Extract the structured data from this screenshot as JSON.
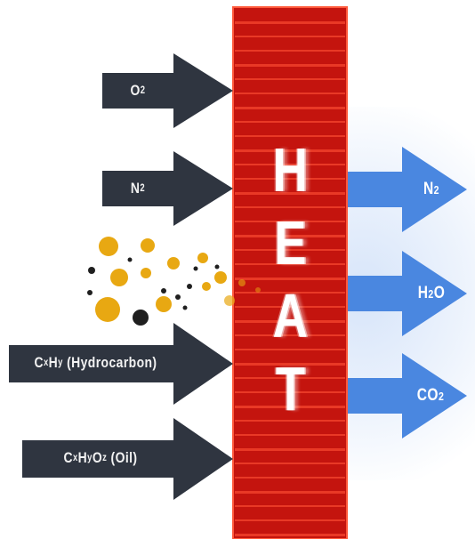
{
  "diagram": {
    "center_word": [
      "H",
      "E",
      "A",
      "T"
    ],
    "inputs": {
      "oxygen": {
        "base": "O",
        "sub": "2"
      },
      "nitrogen": {
        "base": "N",
        "sub": "2"
      },
      "hydrocarbon": {
        "c": "C",
        "c_sub": "x",
        "h": "H",
        "h_sub": "y",
        "desc": "(Hydrocarbon)"
      },
      "oil": {
        "c": "C",
        "c_sub": "x",
        "h": "H",
        "h_sub": "y",
        "o": "O",
        "o_sub": "z",
        "desc": "(Oil)"
      }
    },
    "outputs": {
      "nitrogen": {
        "base": "N",
        "sub": "2"
      },
      "water": {
        "h": "H",
        "h_sub": "2",
        "o": "O"
      },
      "carbon_dioxide": {
        "base": "CO",
        "sub": "2"
      }
    },
    "colors": {
      "input_arrow": "#2f3540",
      "output_arrow": "#4a87e0",
      "heat_bar": "#c4140e",
      "heat_stripe": "#f0402a",
      "particle_gold": "#e8a812",
      "particle_dark": "#1f1f1f"
    },
    "icons": {
      "input_arrows": "right-arrow-dark",
      "output_arrows": "right-arrow-blue",
      "particles": "droplet-particles"
    }
  }
}
